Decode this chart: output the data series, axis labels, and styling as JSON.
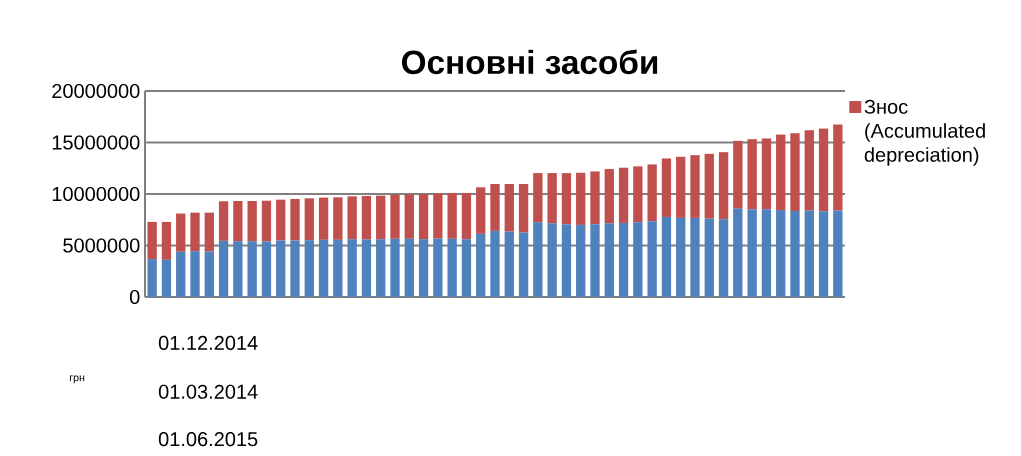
{
  "chart_data": {
    "type": "bar",
    "title": "Основні засоби",
    "stacked": true,
    "categories": [
      null,
      null,
      null,
      null,
      null,
      null,
      null,
      null,
      null,
      null,
      null,
      null,
      null,
      null,
      null,
      null,
      null,
      null,
      null,
      null,
      null,
      null,
      null,
      null,
      null,
      null,
      null,
      null,
      null,
      null,
      null,
      null,
      null,
      null,
      null,
      null,
      null,
      null,
      null,
      null,
      null,
      null,
      null,
      null,
      null,
      null,
      null,
      null,
      null
    ],
    "series": [
      {
        "color": "#4f81bd",
        "values": [
          3680000,
          3610000,
          4390000,
          4450000,
          4420000,
          5450000,
          5420000,
          5420000,
          5390000,
          5480000,
          5480000,
          5520000,
          5550000,
          5550000,
          5610000,
          5580000,
          5610000,
          5650000,
          5650000,
          5610000,
          5680000,
          5650000,
          5610000,
          6130000,
          6420000,
          6350000,
          6260000,
          7260000,
          7160000,
          7060000,
          7000000,
          7060000,
          7160000,
          7190000,
          7260000,
          7350000,
          7770000,
          7680000,
          7680000,
          7610000,
          7550000,
          8580000,
          8520000,
          8520000,
          8450000,
          8350000,
          8390000,
          8320000,
          8390000
        ]
      },
      {
        "name": "Знос (Accumulated depreciation)",
        "color": "#c0504d",
        "values": [
          3610000,
          3680000,
          3710000,
          3740000,
          3770000,
          3840000,
          3900000,
          3900000,
          3960000,
          3970000,
          4040000,
          4060000,
          4100000,
          4130000,
          4160000,
          4230000,
          4230000,
          4290000,
          4320000,
          4390000,
          4380000,
          4450000,
          4490000,
          4520000,
          4550000,
          4620000,
          4710000,
          4770000,
          4870000,
          4970000,
          5060000,
          5130000,
          5260000,
          5360000,
          5420000,
          5520000,
          5680000,
          5930000,
          6090000,
          6290000,
          6510000,
          6580000,
          6800000,
          6870000,
          7320000,
          7550000,
          7800000,
          8030000,
          8350000
        ]
      }
    ],
    "ylim": [
      0,
      20000000
    ],
    "yticks": [
      0,
      5000000,
      10000000,
      15000000,
      20000000
    ],
    "grid": "y",
    "legend": "top right",
    "annotations": [
      "01.12.2014",
      "грн",
      "01.03.2014",
      "01.06.2015"
    ]
  }
}
